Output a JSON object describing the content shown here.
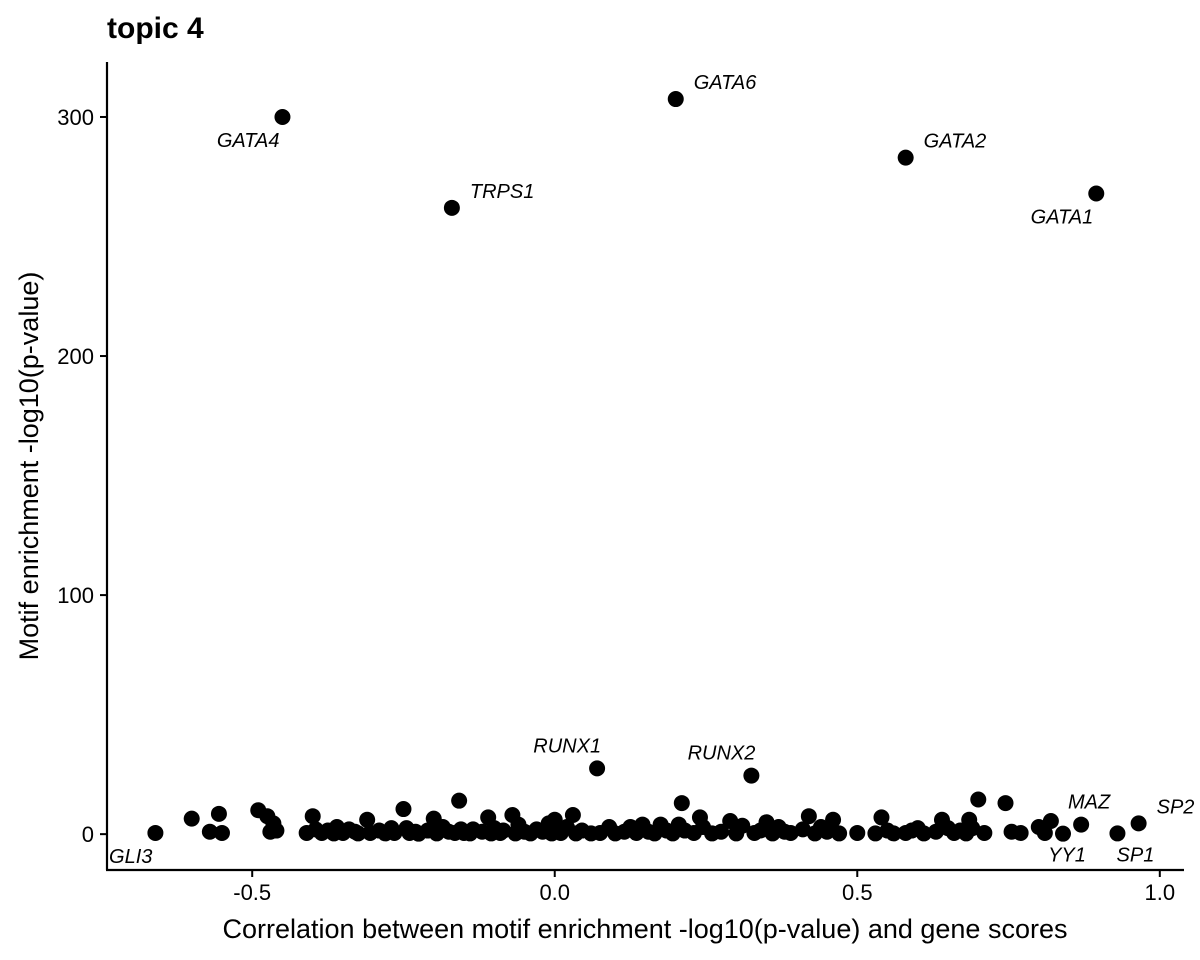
{
  "chart_data": {
    "type": "scatter",
    "title": "topic 4",
    "xlabel": "Correlation between motif enrichment -log10(p-value) and gene scores",
    "ylabel": "Motif enrichment -log10(p-value)",
    "xlim": [
      -0.74,
      1.04
    ],
    "ylim": [
      -15,
      323
    ],
    "xticks": [
      -0.5,
      0.0,
      0.5,
      1.0
    ],
    "xtick_labels": [
      "-0.5",
      "0.0",
      "0.5",
      "1.0"
    ],
    "yticks": [
      0,
      100,
      200,
      300
    ],
    "ytick_labels": [
      "0",
      "100",
      "200",
      "300"
    ],
    "grid": false,
    "legend": "none",
    "point_color": "#000000",
    "labeled_points": [
      {
        "label": "GATA4",
        "x": -0.45,
        "y": 300,
        "label_pos": "below-left"
      },
      {
        "label": "GATA6",
        "x": 0.2,
        "y": 307.5,
        "label_pos": "above-right"
      },
      {
        "label": "TRPS1",
        "x": -0.17,
        "y": 262,
        "label_pos": "above-right"
      },
      {
        "label": "GATA2",
        "x": 0.58,
        "y": 283,
        "label_pos": "above-right"
      },
      {
        "label": "GATA1",
        "x": 0.895,
        "y": 268,
        "label_pos": "below-left"
      },
      {
        "label": "RUNX1",
        "x": 0.07,
        "y": 27.5,
        "label_pos": "above-left"
      },
      {
        "label": "RUNX2",
        "x": 0.325,
        "y": 24.5,
        "label_pos": "above-left"
      },
      {
        "label": "MAZ",
        "x": 0.87,
        "y": 4,
        "label_pos": "above"
      },
      {
        "label": "SP2",
        "x": 0.965,
        "y": 4.5,
        "label_pos": "above-right"
      },
      {
        "label": "YY1",
        "x": 0.84,
        "y": 0.2,
        "label_pos": "below"
      },
      {
        "label": "SP1",
        "x": 0.93,
        "y": 0.3,
        "label_pos": "below-right"
      },
      {
        "label": "GLI3",
        "x": -0.66,
        "y": 0.5,
        "label_pos": "below-left"
      }
    ],
    "other_points": [
      [
        -0.6,
        6.5
      ],
      [
        -0.57,
        1
      ],
      [
        -0.555,
        8.5
      ],
      [
        -0.55,
        0.5
      ],
      [
        -0.49,
        10
      ],
      [
        -0.475,
        7.5
      ],
      [
        -0.47,
        1
      ],
      [
        -0.465,
        4.5
      ],
      [
        -0.46,
        1.5
      ],
      [
        -0.41,
        0.5
      ],
      [
        -0.4,
        7.5
      ],
      [
        -0.395,
        2
      ],
      [
        -0.385,
        0.5
      ],
      [
        -0.375,
        1.5
      ],
      [
        -0.365,
        0.3
      ],
      [
        -0.36,
        3
      ],
      [
        -0.35,
        0.5
      ],
      [
        -0.34,
        2
      ],
      [
        -0.33,
        1
      ],
      [
        -0.325,
        0.3
      ],
      [
        -0.31,
        6
      ],
      [
        -0.305,
        0.5
      ],
      [
        -0.29,
        1.5
      ],
      [
        -0.28,
        0.3
      ],
      [
        -0.27,
        2.5
      ],
      [
        -0.265,
        0.5
      ],
      [
        -0.25,
        10.5
      ],
      [
        -0.245,
        2.5
      ],
      [
        -0.24,
        0.5
      ],
      [
        -0.23,
        1
      ],
      [
        -0.225,
        0.2
      ],
      [
        -0.21,
        1.5
      ],
      [
        -0.2,
        6.5
      ],
      [
        -0.195,
        0.3
      ],
      [
        -0.185,
        3
      ],
      [
        -0.175,
        1
      ],
      [
        -0.165,
        0.5
      ],
      [
        -0.155,
        2
      ],
      [
        -0.158,
        14
      ],
      [
        -0.15,
        0.5
      ],
      [
        -0.14,
        0.3
      ],
      [
        -0.135,
        2
      ],
      [
        -0.12,
        1
      ],
      [
        -0.11,
        7
      ],
      [
        -0.105,
        0.3
      ],
      [
        -0.1,
        2.5
      ],
      [
        -0.09,
        0.5
      ],
      [
        -0.085,
        1.5
      ],
      [
        -0.07,
        8
      ],
      [
        -0.065,
        0.3
      ],
      [
        -0.06,
        4
      ],
      [
        -0.05,
        1
      ],
      [
        -0.04,
        0.3
      ],
      [
        -0.03,
        2
      ],
      [
        -0.02,
        1
      ],
      [
        -0.01,
        4.5
      ],
      [
        -0.005,
        0.3
      ],
      [
        0.0,
        6
      ],
      [
        0.005,
        2
      ],
      [
        0.01,
        0.5
      ],
      [
        0.02,
        3
      ],
      [
        0.03,
        8
      ],
      [
        0.035,
        0.3
      ],
      [
        0.045,
        1.5
      ],
      [
        0.06,
        0.3
      ],
      [
        0.075,
        0.5
      ],
      [
        0.09,
        3
      ],
      [
        0.1,
        0.3
      ],
      [
        0.115,
        1
      ],
      [
        0.125,
        3
      ],
      [
        0.135,
        0.5
      ],
      [
        0.145,
        4
      ],
      [
        0.155,
        1
      ],
      [
        0.165,
        0.3
      ],
      [
        0.175,
        4
      ],
      [
        0.185,
        1.5
      ],
      [
        0.195,
        0.3
      ],
      [
        0.205,
        4
      ],
      [
        0.21,
        13
      ],
      [
        0.215,
        1.5
      ],
      [
        0.23,
        0.5
      ],
      [
        0.24,
        7
      ],
      [
        0.245,
        3
      ],
      [
        0.26,
        0.3
      ],
      [
        0.275,
        1
      ],
      [
        0.29,
        5.5
      ],
      [
        0.3,
        0.3
      ],
      [
        0.31,
        3.5
      ],
      [
        0.33,
        0.5
      ],
      [
        0.34,
        1.5
      ],
      [
        0.35,
        5
      ],
      [
        0.36,
        0.3
      ],
      [
        0.37,
        3
      ],
      [
        0.38,
        1
      ],
      [
        0.39,
        0.5
      ],
      [
        0.41,
        2
      ],
      [
        0.42,
        7.5
      ],
      [
        0.43,
        0.3
      ],
      [
        0.44,
        3
      ],
      [
        0.45,
        1
      ],
      [
        0.46,
        6
      ],
      [
        0.47,
        0.3
      ],
      [
        0.5,
        0.5
      ],
      [
        0.53,
        0.3
      ],
      [
        0.54,
        7
      ],
      [
        0.55,
        1.5
      ],
      [
        0.56,
        0.3
      ],
      [
        0.58,
        0.5
      ],
      [
        0.59,
        1.5
      ],
      [
        0.6,
        2.5
      ],
      [
        0.61,
        0.3
      ],
      [
        0.63,
        1
      ],
      [
        0.64,
        6
      ],
      [
        0.65,
        2.5
      ],
      [
        0.66,
        0.5
      ],
      [
        0.67,
        1.5
      ],
      [
        0.68,
        0.3
      ],
      [
        0.685,
        6
      ],
      [
        0.69,
        2.5
      ],
      [
        0.7,
        14.5
      ],
      [
        0.71,
        0.5
      ],
      [
        0.745,
        13
      ],
      [
        0.755,
        1
      ],
      [
        0.77,
        0.5
      ],
      [
        0.8,
        3
      ],
      [
        0.81,
        0.5
      ],
      [
        0.82,
        5.5
      ]
    ]
  }
}
